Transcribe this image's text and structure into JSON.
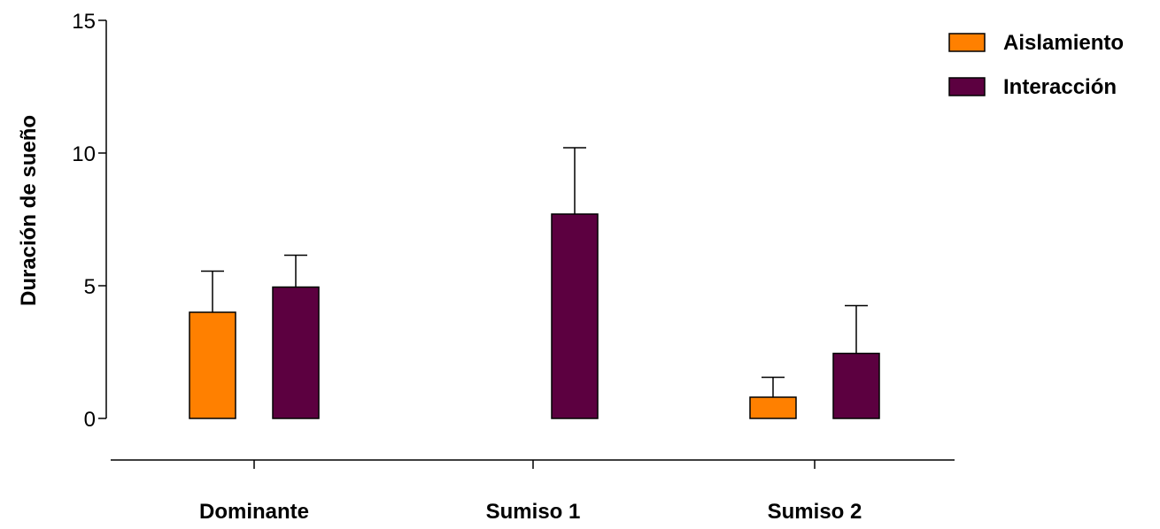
{
  "chart_data": {
    "type": "bar",
    "categories": [
      "Dominante",
      "Sumiso 1",
      "Sumiso 2"
    ],
    "series": [
      {
        "name": "Aislamiento",
        "color": "#FF8000",
        "values": [
          4.0,
          null,
          0.8
        ],
        "error": [
          1.55,
          null,
          0.75
        ]
      },
      {
        "name": "Interacción",
        "color": "#5C0040",
        "values": [
          4.95,
          7.7,
          2.45
        ],
        "error": [
          1.2,
          2.5,
          1.8
        ]
      }
    ],
    "ylabel": "Duración de sueño",
    "xlabel": "",
    "ylim": [
      0,
      15
    ],
    "yticks": [
      0,
      5,
      10,
      15
    ],
    "legend": {
      "position": "top-right"
    },
    "grid": false
  }
}
